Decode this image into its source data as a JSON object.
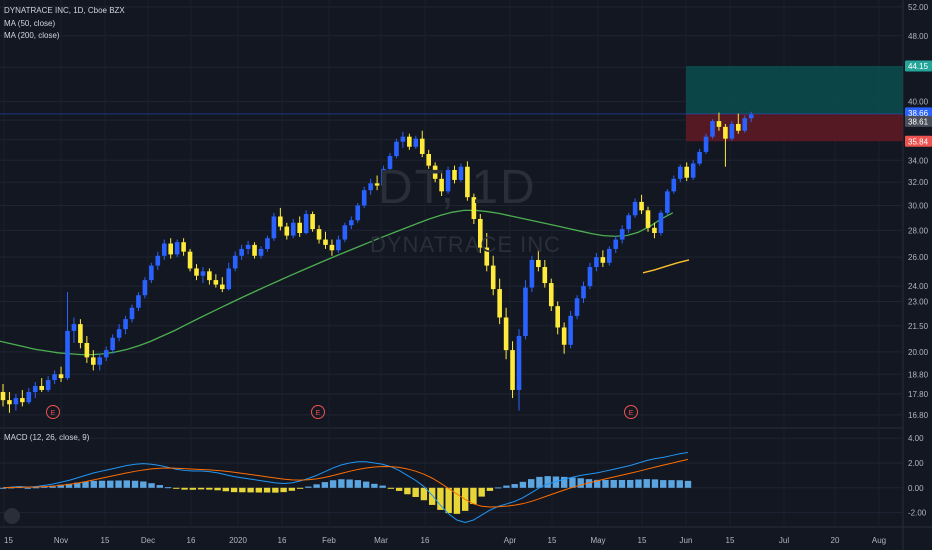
{
  "header": {
    "symbol_line": "DYNATRACE INC, 1D, Cboe BZX",
    "ma50_label": "MA (50, close)",
    "ma200_label": "MA (200, close)"
  },
  "watermark": {
    "ticker": "DT, 1D",
    "name": "DYNATRACE INC"
  },
  "macd": {
    "label": "MACD (12, 26, close, 9)",
    "ylim": [
      -3.0,
      4.5
    ]
  },
  "colors": {
    "background": "#131722",
    "up": "#2962ff",
    "down": "#ffeb3b",
    "ma50": "#4caf50",
    "ma200": "#fbc02d",
    "macd_line": "#2196f3",
    "signal_line": "#ff6d00",
    "profit_zone": "#0b4d4d",
    "loss_zone": "#5c1a24",
    "target_tag": "#26a69a",
    "stop_tag": "#ef5350",
    "entry_tag": "#2962ff"
  },
  "price_axis": {
    "ticks": [
      "52.00",
      "48.00",
      "44.00",
      "40.00",
      "38.00",
      "36.00",
      "34.00",
      "32.00",
      "30.00",
      "28.00",
      "26.00",
      "24.00",
      "23.00",
      "21.50",
      "20.00",
      "18.80",
      "17.80",
      "16.80"
    ],
    "scale": "log",
    "ylim": [
      16.2,
      53.0
    ]
  },
  "price_tags": [
    {
      "label": "44.15",
      "kind": "target"
    },
    {
      "label": "38.66",
      "kind": "entry"
    },
    {
      "label": "38.61",
      "kind": "last"
    },
    {
      "label": "35.84",
      "kind": "stop"
    }
  ],
  "time_axis": {
    "labels": [
      "15",
      "Nov",
      "15",
      "Dec",
      "16",
      "2020",
      "16",
      "Feb",
      "Mar",
      "16",
      "Apr",
      "15",
      "May",
      "15",
      "Jun",
      "15",
      "Jul",
      "20",
      "Aug"
    ]
  },
  "earnings_markers": [
    "E",
    "E",
    "E"
  ],
  "chart_data": {
    "type": "candlestick",
    "title": "DYNATRACE INC, 1D, Cboe BZX",
    "candles": [
      {
        "o": 17.9,
        "h": 18.3,
        "l": 17.2,
        "c": 17.5
      },
      {
        "o": 17.5,
        "h": 17.9,
        "l": 16.9,
        "c": 17.3
      },
      {
        "o": 17.3,
        "h": 17.8,
        "l": 17.0,
        "c": 17.6
      },
      {
        "o": 17.6,
        "h": 18.0,
        "l": 17.2,
        "c": 17.4
      },
      {
        "o": 17.4,
        "h": 18.1,
        "l": 17.3,
        "c": 17.9
      },
      {
        "o": 17.9,
        "h": 18.4,
        "l": 17.6,
        "c": 18.2
      },
      {
        "o": 18.2,
        "h": 18.6,
        "l": 17.9,
        "c": 18.0
      },
      {
        "o": 18.0,
        "h": 18.7,
        "l": 17.9,
        "c": 18.5
      },
      {
        "o": 18.5,
        "h": 19.0,
        "l": 18.3,
        "c": 18.8
      },
      {
        "o": 18.8,
        "h": 19.2,
        "l": 18.4,
        "c": 18.6
      },
      {
        "o": 18.6,
        "h": 23.6,
        "l": 18.5,
        "c": 21.2
      },
      {
        "o": 21.2,
        "h": 22.0,
        "l": 20.5,
        "c": 21.6
      },
      {
        "o": 21.6,
        "h": 21.9,
        "l": 20.2,
        "c": 20.5
      },
      {
        "o": 20.5,
        "h": 20.9,
        "l": 19.4,
        "c": 19.7
      },
      {
        "o": 19.7,
        "h": 20.1,
        "l": 19.0,
        "c": 19.3
      },
      {
        "o": 19.3,
        "h": 19.9,
        "l": 19.0,
        "c": 19.7
      },
      {
        "o": 19.7,
        "h": 20.3,
        "l": 19.5,
        "c": 20.1
      },
      {
        "o": 20.1,
        "h": 21.0,
        "l": 19.9,
        "c": 20.8
      },
      {
        "o": 20.8,
        "h": 21.6,
        "l": 20.6,
        "c": 21.3
      },
      {
        "o": 21.3,
        "h": 22.1,
        "l": 21.0,
        "c": 21.9
      },
      {
        "o": 21.9,
        "h": 22.8,
        "l": 21.7,
        "c": 22.6
      },
      {
        "o": 22.6,
        "h": 23.6,
        "l": 22.4,
        "c": 23.4
      },
      {
        "o": 23.4,
        "h": 24.6,
        "l": 23.2,
        "c": 24.4
      },
      {
        "o": 24.4,
        "h": 25.6,
        "l": 24.2,
        "c": 25.4
      },
      {
        "o": 25.4,
        "h": 26.4,
        "l": 25.1,
        "c": 26.1
      },
      {
        "o": 26.1,
        "h": 27.3,
        "l": 25.8,
        "c": 27.0
      },
      {
        "o": 27.0,
        "h": 27.4,
        "l": 25.9,
        "c": 26.2
      },
      {
        "o": 26.2,
        "h": 27.3,
        "l": 26.0,
        "c": 27.1
      },
      {
        "o": 27.1,
        "h": 27.4,
        "l": 26.1,
        "c": 26.4
      },
      {
        "o": 26.4,
        "h": 26.6,
        "l": 25.0,
        "c": 25.2
      },
      {
        "o": 25.2,
        "h": 25.5,
        "l": 24.4,
        "c": 24.7
      },
      {
        "o": 24.7,
        "h": 25.3,
        "l": 24.2,
        "c": 25.0
      },
      {
        "o": 25.0,
        "h": 25.2,
        "l": 24.1,
        "c": 24.4
      },
      {
        "o": 24.4,
        "h": 24.8,
        "l": 23.9,
        "c": 24.1
      },
      {
        "o": 24.1,
        "h": 24.6,
        "l": 23.6,
        "c": 23.8
      },
      {
        "o": 23.8,
        "h": 25.6,
        "l": 23.7,
        "c": 25.2
      },
      {
        "o": 25.2,
        "h": 26.4,
        "l": 25.0,
        "c": 26.1
      },
      {
        "o": 26.1,
        "h": 26.9,
        "l": 25.8,
        "c": 26.6
      },
      {
        "o": 26.6,
        "h": 27.2,
        "l": 26.2,
        "c": 26.9
      },
      {
        "o": 26.9,
        "h": 27.1,
        "l": 25.9,
        "c": 26.1
      },
      {
        "o": 26.1,
        "h": 26.8,
        "l": 25.9,
        "c": 26.6
      },
      {
        "o": 26.6,
        "h": 27.6,
        "l": 26.4,
        "c": 27.4
      },
      {
        "o": 27.4,
        "h": 29.4,
        "l": 27.2,
        "c": 29.1
      },
      {
        "o": 29.1,
        "h": 29.8,
        "l": 28.0,
        "c": 28.3
      },
      {
        "o": 28.3,
        "h": 28.6,
        "l": 27.3,
        "c": 27.6
      },
      {
        "o": 27.6,
        "h": 28.9,
        "l": 27.4,
        "c": 28.6
      },
      {
        "o": 28.6,
        "h": 29.1,
        "l": 27.5,
        "c": 27.8
      },
      {
        "o": 27.8,
        "h": 29.6,
        "l": 27.7,
        "c": 29.3
      },
      {
        "o": 29.3,
        "h": 29.5,
        "l": 27.9,
        "c": 28.1
      },
      {
        "o": 28.1,
        "h": 28.4,
        "l": 27.0,
        "c": 27.3
      },
      {
        "o": 27.3,
        "h": 27.9,
        "l": 26.6,
        "c": 26.9
      },
      {
        "o": 26.9,
        "h": 27.3,
        "l": 26.1,
        "c": 26.5
      },
      {
        "o": 26.5,
        "h": 27.6,
        "l": 26.3,
        "c": 27.3
      },
      {
        "o": 27.3,
        "h": 28.6,
        "l": 27.1,
        "c": 28.4
      },
      {
        "o": 28.4,
        "h": 29.1,
        "l": 28.1,
        "c": 28.8
      },
      {
        "o": 28.8,
        "h": 30.2,
        "l": 28.6,
        "c": 30.0
      },
      {
        "o": 30.0,
        "h": 31.6,
        "l": 29.8,
        "c": 31.3
      },
      {
        "o": 31.3,
        "h": 32.3,
        "l": 30.9,
        "c": 31.9
      },
      {
        "o": 31.9,
        "h": 32.6,
        "l": 31.3,
        "c": 31.7
      },
      {
        "o": 31.7,
        "h": 33.5,
        "l": 31.5,
        "c": 33.2
      },
      {
        "o": 33.2,
        "h": 34.7,
        "l": 33.0,
        "c": 34.4
      },
      {
        "o": 34.4,
        "h": 36.1,
        "l": 34.2,
        "c": 35.8
      },
      {
        "o": 35.8,
        "h": 36.8,
        "l": 35.2,
        "c": 36.3
      },
      {
        "o": 36.3,
        "h": 36.6,
        "l": 35.0,
        "c": 35.3
      },
      {
        "o": 35.3,
        "h": 36.4,
        "l": 35.1,
        "c": 36.1
      },
      {
        "o": 36.1,
        "h": 36.9,
        "l": 34.3,
        "c": 34.6
      },
      {
        "o": 34.6,
        "h": 35.0,
        "l": 33.2,
        "c": 33.5
      },
      {
        "o": 33.5,
        "h": 33.8,
        "l": 32.0,
        "c": 32.3
      },
      {
        "o": 32.3,
        "h": 32.9,
        "l": 30.8,
        "c": 31.2
      },
      {
        "o": 31.2,
        "h": 33.4,
        "l": 31.0,
        "c": 33.1
      },
      {
        "o": 33.1,
        "h": 33.5,
        "l": 31.9,
        "c": 32.2
      },
      {
        "o": 32.2,
        "h": 33.7,
        "l": 32.0,
        "c": 33.4
      },
      {
        "o": 33.4,
        "h": 33.9,
        "l": 30.4,
        "c": 30.7
      },
      {
        "o": 30.7,
        "h": 31.0,
        "l": 28.5,
        "c": 28.9
      },
      {
        "o": 28.9,
        "h": 29.3,
        "l": 26.3,
        "c": 26.7
      },
      {
        "o": 26.7,
        "h": 27.8,
        "l": 25.0,
        "c": 25.4
      },
      {
        "o": 25.4,
        "h": 26.1,
        "l": 23.4,
        "c": 23.8
      },
      {
        "o": 23.8,
        "h": 24.5,
        "l": 21.6,
        "c": 22.0
      },
      {
        "o": 22.0,
        "h": 22.6,
        "l": 19.6,
        "c": 20.1
      },
      {
        "o": 20.1,
        "h": 20.6,
        "l": 17.6,
        "c": 18.0
      },
      {
        "o": 18.0,
        "h": 21.3,
        "l": 17.0,
        "c": 20.9
      },
      {
        "o": 20.9,
        "h": 24.4,
        "l": 20.7,
        "c": 23.9
      },
      {
        "o": 23.9,
        "h": 26.1,
        "l": 23.6,
        "c": 25.8
      },
      {
        "o": 25.8,
        "h": 26.6,
        "l": 25.0,
        "c": 25.3
      },
      {
        "o": 25.3,
        "h": 25.8,
        "l": 23.9,
        "c": 24.2
      },
      {
        "o": 24.2,
        "h": 24.5,
        "l": 22.4,
        "c": 22.7
      },
      {
        "o": 22.7,
        "h": 23.0,
        "l": 21.0,
        "c": 21.4
      },
      {
        "o": 21.4,
        "h": 21.7,
        "l": 19.9,
        "c": 20.4
      },
      {
        "o": 20.4,
        "h": 22.4,
        "l": 20.2,
        "c": 22.1
      },
      {
        "o": 22.1,
        "h": 23.4,
        "l": 21.9,
        "c": 23.2
      },
      {
        "o": 23.2,
        "h": 24.3,
        "l": 22.9,
        "c": 24.0
      },
      {
        "o": 24.0,
        "h": 25.6,
        "l": 23.8,
        "c": 25.3
      },
      {
        "o": 25.3,
        "h": 26.3,
        "l": 25.0,
        "c": 26.0
      },
      {
        "o": 26.0,
        "h": 26.5,
        "l": 25.3,
        "c": 25.6
      },
      {
        "o": 25.6,
        "h": 26.8,
        "l": 25.4,
        "c": 26.6
      },
      {
        "o": 26.6,
        "h": 27.6,
        "l": 26.3,
        "c": 27.3
      },
      {
        "o": 27.3,
        "h": 28.4,
        "l": 27.0,
        "c": 28.1
      },
      {
        "o": 28.1,
        "h": 29.4,
        "l": 27.8,
        "c": 29.2
      },
      {
        "o": 29.2,
        "h": 30.6,
        "l": 29.0,
        "c": 30.3
      },
      {
        "o": 30.3,
        "h": 30.9,
        "l": 29.3,
        "c": 29.6
      },
      {
        "o": 29.6,
        "h": 29.9,
        "l": 27.9,
        "c": 28.2
      },
      {
        "o": 28.2,
        "h": 28.6,
        "l": 27.4,
        "c": 27.8
      },
      {
        "o": 27.8,
        "h": 29.6,
        "l": 27.6,
        "c": 29.4
      },
      {
        "o": 29.4,
        "h": 31.4,
        "l": 29.2,
        "c": 31.2
      },
      {
        "o": 31.2,
        "h": 32.6,
        "l": 31.0,
        "c": 32.3
      },
      {
        "o": 32.3,
        "h": 33.6,
        "l": 32.0,
        "c": 33.4
      },
      {
        "o": 33.4,
        "h": 33.8,
        "l": 32.1,
        "c": 32.4
      },
      {
        "o": 32.4,
        "h": 34.0,
        "l": 32.2,
        "c": 33.7
      },
      {
        "o": 33.7,
        "h": 35.1,
        "l": 33.5,
        "c": 34.8
      },
      {
        "o": 34.8,
        "h": 36.6,
        "l": 34.6,
        "c": 36.3
      },
      {
        "o": 36.3,
        "h": 38.1,
        "l": 36.1,
        "c": 37.9
      },
      {
        "o": 37.9,
        "h": 38.8,
        "l": 36.9,
        "c": 37.3
      },
      {
        "o": 37.3,
        "h": 37.6,
        "l": 33.4,
        "c": 36.1
      },
      {
        "o": 36.1,
        "h": 37.9,
        "l": 35.9,
        "c": 37.6
      },
      {
        "o": 37.6,
        "h": 38.7,
        "l": 36.6,
        "c": 36.9
      },
      {
        "o": 36.9,
        "h": 38.5,
        "l": 36.7,
        "c": 38.2
      },
      {
        "o": 38.2,
        "h": 38.9,
        "l": 37.8,
        "c": 38.6
      }
    ],
    "ma50": [
      20.6,
      20.45,
      20.3,
      20.15,
      20.05,
      19.95,
      19.9,
      19.85,
      19.85,
      19.9,
      20.0,
      20.15,
      20.35,
      20.6,
      20.9,
      21.2,
      21.55,
      21.9,
      22.25,
      22.6,
      22.95,
      23.3,
      23.65,
      24.0,
      24.35,
      24.7,
      25.05,
      25.4,
      25.75,
      26.1,
      26.45,
      26.8,
      27.15,
      27.5,
      27.85,
      28.2,
      28.55,
      28.9,
      29.2,
      29.45,
      29.6,
      29.6,
      29.5,
      29.35,
      29.15,
      28.95,
      28.75,
      28.55,
      28.35,
      28.15,
      27.95,
      27.75,
      27.6,
      27.55,
      27.6,
      27.85,
      28.3,
      28.9,
      29.4
    ],
    "ma200": [
      24.9,
      25.1,
      25.35,
      25.6,
      25.8
    ],
    "macd_line": [
      0.0,
      0.05,
      0.1,
      0.05,
      0.1,
      0.2,
      0.3,
      0.45,
      0.6,
      0.8,
      1.0,
      1.2,
      1.35,
      1.5,
      1.65,
      1.8,
      1.9,
      1.95,
      1.9,
      1.8,
      1.65,
      1.5,
      1.4,
      1.35,
      1.35,
      1.3,
      1.2,
      1.05,
      0.9,
      0.8,
      0.7,
      0.6,
      0.5,
      0.4,
      0.35,
      0.4,
      0.55,
      0.75,
      1.0,
      1.3,
      1.6,
      1.85,
      2.0,
      2.1,
      2.1,
      2.0,
      1.9,
      1.7,
      1.4,
      1.0,
      0.6,
      0.1,
      -0.6,
      -1.4,
      -2.1,
      -2.6,
      -2.8,
      -2.6,
      -2.2,
      -1.8,
      -1.5,
      -1.3,
      -1.1,
      -0.8,
      -0.4,
      0.0,
      0.3,
      0.5,
      0.7,
      0.85,
      1.0,
      1.1,
      1.2,
      1.35,
      1.5,
      1.65,
      1.8,
      2.0,
      2.2,
      2.35,
      2.45,
      2.6,
      2.75,
      2.85
    ],
    "signal_line": [
      0.0,
      0.02,
      0.04,
      0.05,
      0.06,
      0.09,
      0.13,
      0.2,
      0.28,
      0.38,
      0.5,
      0.64,
      0.78,
      0.92,
      1.06,
      1.2,
      1.33,
      1.44,
      1.53,
      1.58,
      1.6,
      1.58,
      1.55,
      1.51,
      1.48,
      1.45,
      1.4,
      1.33,
      1.25,
      1.16,
      1.07,
      0.98,
      0.88,
      0.79,
      0.7,
      0.64,
      0.62,
      0.65,
      0.72,
      0.84,
      0.99,
      1.16,
      1.33,
      1.48,
      1.6,
      1.68,
      1.72,
      1.71,
      1.65,
      1.52,
      1.34,
      1.1,
      0.78,
      0.38,
      -0.06,
      -0.5,
      -0.94,
      -1.29,
      -1.49,
      -1.55,
      -1.53,
      -1.48,
      -1.4,
      -1.28,
      -1.1,
      -0.88,
      -0.64,
      -0.41,
      -0.18,
      0.03,
      0.23,
      0.4,
      0.56,
      0.72,
      0.87,
      1.02,
      1.17,
      1.33,
      1.5,
      1.67,
      1.83,
      1.98,
      2.14,
      2.29
    ],
    "histogram": [
      0.0,
      0.03,
      0.06,
      0.0,
      0.04,
      0.11,
      0.17,
      0.25,
      0.32,
      0.42,
      0.5,
      0.56,
      0.57,
      0.58,
      0.59,
      0.6,
      0.57,
      0.51,
      0.37,
      0.22,
      0.05,
      -0.08,
      -0.15,
      -0.16,
      -0.13,
      -0.15,
      -0.2,
      -0.28,
      -0.35,
      -0.36,
      -0.37,
      -0.38,
      -0.38,
      -0.39,
      -0.35,
      -0.24,
      -0.07,
      0.1,
      0.28,
      0.46,
      0.61,
      0.69,
      0.67,
      0.62,
      0.5,
      0.32,
      0.18,
      -0.01,
      -0.25,
      -0.52,
      -0.74,
      -1.0,
      -1.38,
      -1.78,
      -2.04,
      -2.1,
      -1.86,
      -1.31,
      -0.71,
      -0.25,
      0.03,
      0.18,
      0.3,
      0.48,
      0.7,
      0.88,
      0.94,
      0.91,
      0.88,
      0.82,
      0.77,
      0.7,
      0.64,
      0.63,
      0.63,
      0.63,
      0.63,
      0.67,
      0.7,
      0.68,
      0.62,
      0.62,
      0.61,
      0.56
    ]
  }
}
